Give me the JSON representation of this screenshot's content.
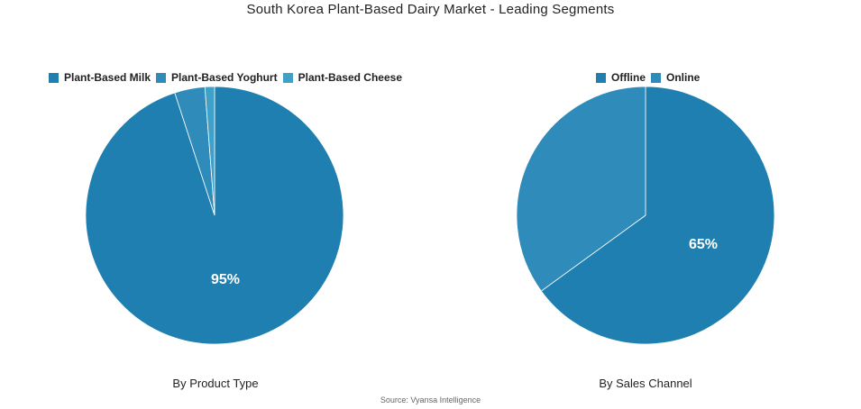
{
  "title": "South Korea Plant-Based Dairy Market - Leading Segments",
  "source": "Source: Vyansa Intelligence",
  "chart_data": [
    {
      "type": "pie",
      "caption": "By Product Type",
      "legend_position": "top",
      "categories": [
        "Plant-Based Milk",
        "Plant-Based Yoghurt",
        "Plant-Based Cheese"
      ],
      "values": [
        95,
        3.8,
        1.2
      ],
      "colors": [
        "#1f7fb0",
        "#2e8bba",
        "#3fa0c8"
      ],
      "labels": [
        "95%",
        "",
        ""
      ]
    },
    {
      "type": "pie",
      "caption": "By Sales Channel",
      "legend_position": "top",
      "categories": [
        "Offline",
        "Online"
      ],
      "values": [
        65,
        35
      ],
      "colors": [
        "#1f7fb0",
        "#2e8bba"
      ],
      "labels": [
        "65%",
        ""
      ]
    }
  ]
}
